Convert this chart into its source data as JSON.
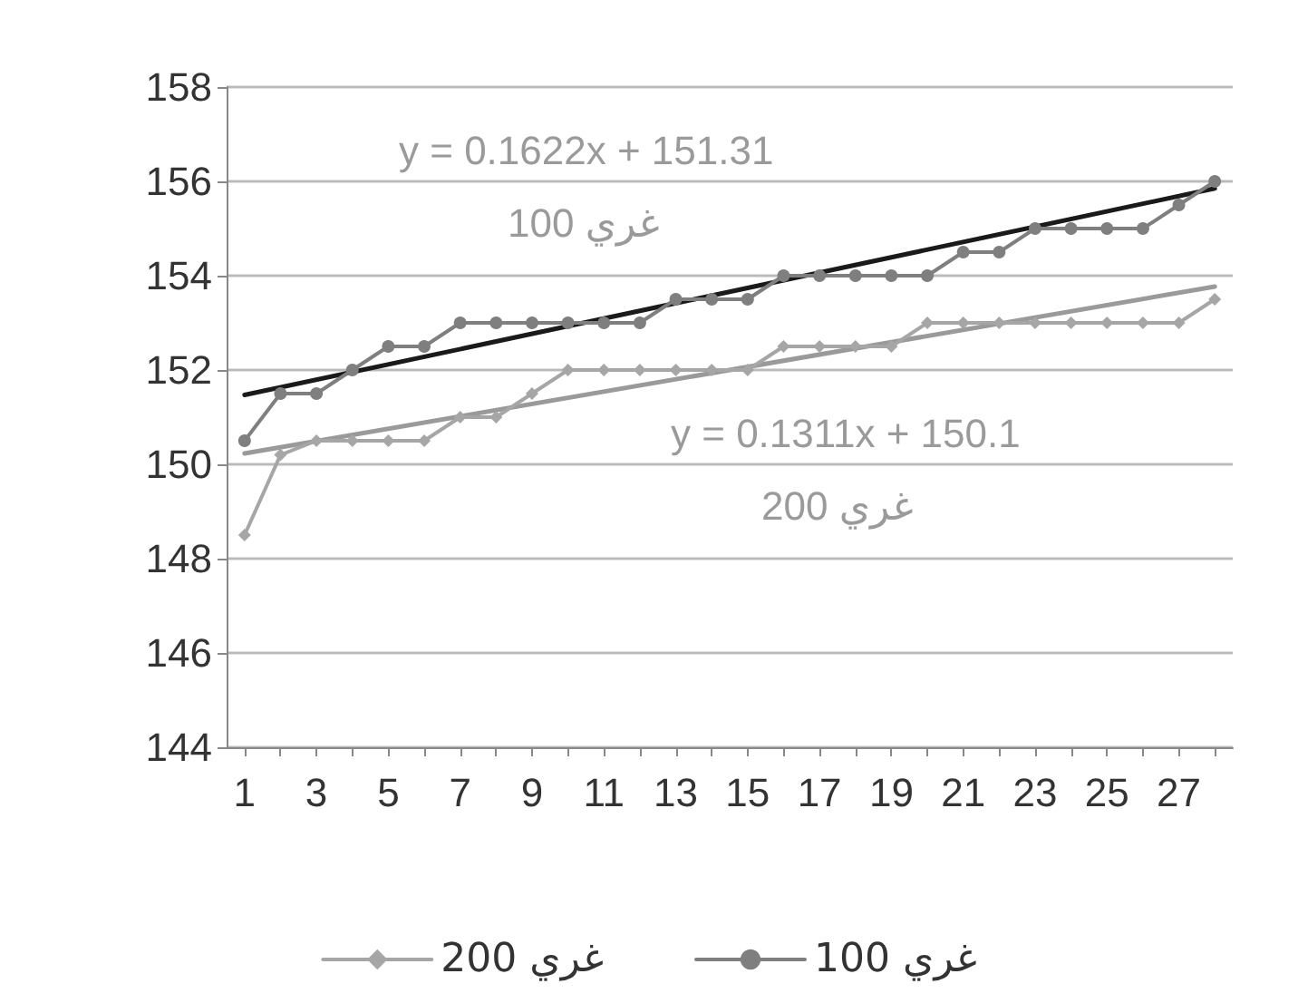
{
  "chart_data": {
    "type": "line",
    "x": [
      1,
      2,
      3,
      4,
      5,
      6,
      7,
      8,
      9,
      10,
      11,
      12,
      13,
      14,
      15,
      16,
      17,
      18,
      19,
      20,
      21,
      22,
      23,
      24,
      25,
      26,
      27,
      28
    ],
    "xlim": [
      0.5,
      28.5
    ],
    "xticks": [
      1,
      {
        "value": 2,
        "label": null
      },
      3,
      {
        "value": 4,
        "label": null
      },
      5,
      {
        "value": 6,
        "label": null
      },
      7,
      {
        "value": 8,
        "label": null
      },
      9,
      {
        "value": 10,
        "label": null
      },
      11,
      {
        "value": 12,
        "label": null
      },
      13,
      {
        "value": 14,
        "label": null
      },
      15,
      {
        "value": 16,
        "label": null
      },
      17,
      {
        "value": 18,
        "label": null
      },
      19,
      {
        "value": 20,
        "label": null
      },
      21,
      {
        "value": 22,
        "label": null
      },
      23,
      {
        "value": 24,
        "label": null
      },
      25,
      {
        "value": 26,
        "label": null
      },
      27,
      {
        "value": 28,
        "label": null
      }
    ],
    "ylim": [
      144,
      158
    ],
    "yticks": [
      144,
      146,
      148,
      150,
      152,
      154,
      156,
      158
    ],
    "grid": "y",
    "legend": "bottom",
    "series": [
      {
        "name": "غري 200",
        "color": "#a6a6a6",
        "marker": "diamond",
        "values": [
          148.5,
          150.2,
          150.5,
          150.5,
          150.5,
          150.5,
          151,
          151,
          151.5,
          152,
          152,
          152,
          152,
          152,
          152,
          152.5,
          152.5,
          152.5,
          152.5,
          153,
          153,
          153,
          153,
          153,
          153,
          153,
          153,
          153.5
        ]
      },
      {
        "name": "غري 100",
        "color": "#7f7f7f",
        "marker": "circle",
        "values": [
          150.5,
          151.5,
          151.5,
          152,
          152.5,
          152.5,
          153,
          153,
          153,
          153,
          153,
          153,
          153.5,
          153.5,
          153.5,
          154,
          154,
          154,
          154,
          154,
          154.5,
          154.5,
          155,
          155,
          155,
          155,
          155.5,
          156
        ]
      },
      {
        "type": "line",
        "color": "#1a1a1a",
        "marker": "none",
        "values": [
          151.47,
          null,
          null,
          null,
          null,
          null,
          null,
          null,
          null,
          null,
          null,
          null,
          null,
          null,
          null,
          null,
          null,
          null,
          null,
          null,
          null,
          null,
          null,
          null,
          null,
          null,
          null,
          155.85
        ]
      },
      {
        "type": "line",
        "color": "#9a9a9a",
        "marker": "none",
        "values": [
          150.23,
          null,
          null,
          null,
          null,
          null,
          null,
          null,
          null,
          null,
          null,
          null,
          null,
          null,
          null,
          null,
          null,
          null,
          null,
          null,
          null,
          null,
          null,
          null,
          null,
          null,
          null,
          153.77
        ]
      }
    ],
    "annotations": [
      "y = 0.1622x + 151.31",
      "غري 100",
      "y = 0.1311x + 150.1",
      "غري 200"
    ]
  }
}
